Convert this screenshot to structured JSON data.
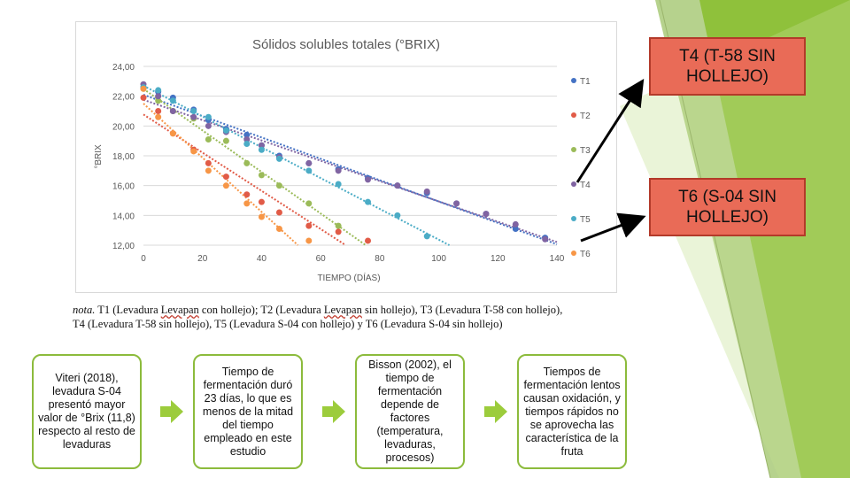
{
  "chart_data": {
    "type": "scatter",
    "title": "Sólidos solubles totales (°BRIX)",
    "xlabel": "TIEMPO (DÍAS)",
    "ylabel": "°BRIX",
    "xlim": [
      0,
      140
    ],
    "ylim": [
      12,
      24
    ],
    "x_ticks": [
      "0",
      "20",
      "40",
      "60",
      "80",
      "100",
      "120",
      "140"
    ],
    "y_ticks": [
      "12,00",
      "14,00",
      "16,00",
      "18,00",
      "20,00",
      "22,00",
      "24,00"
    ],
    "grid": "horizontal",
    "trendlines": "linear dotted",
    "legend_position": "right",
    "series": [
      {
        "name": "T1",
        "color": "#4472c4",
        "x": [
          0,
          5,
          10,
          17,
          22,
          28,
          35,
          40,
          46,
          56,
          66,
          76,
          86,
          96,
          106,
          116,
          126,
          136
        ],
        "y": [
          22.6,
          22.3,
          21.9,
          21.1,
          20.4,
          19.8,
          19.4,
          18.7,
          18.0,
          17.5,
          17.1,
          16.5,
          16.0,
          15.5,
          14.8,
          14.1,
          13.1,
          12.5
        ]
      },
      {
        "name": "T2",
        "color": "#e15b47",
        "x": [
          0,
          5,
          10,
          17,
          22,
          28,
          35,
          40,
          46,
          56,
          66,
          76
        ],
        "y": [
          21.9,
          21.0,
          19.5,
          18.4,
          17.5,
          16.6,
          15.4,
          14.9,
          14.2,
          13.3,
          12.9,
          12.3
        ]
      },
      {
        "name": "T3",
        "color": "#9bbb59",
        "x": [
          0,
          5,
          10,
          17,
          22,
          28,
          35,
          40,
          46,
          56,
          66
        ],
        "y": [
          22.5,
          21.7,
          21.0,
          20.5,
          19.1,
          19.0,
          17.5,
          16.7,
          16.0,
          14.8,
          13.3
        ]
      },
      {
        "name": "T4",
        "color": "#8064a2",
        "x": [
          0,
          5,
          10,
          17,
          22,
          28,
          35,
          40,
          46,
          56,
          66,
          76,
          86,
          96,
          106,
          116,
          126,
          136
        ],
        "y": [
          22.8,
          22.0,
          21.0,
          20.6,
          20.0,
          19.6,
          19.1,
          18.7,
          17.9,
          17.5,
          17.0,
          16.4,
          16.0,
          15.6,
          14.8,
          14.1,
          13.4,
          12.4
        ]
      },
      {
        "name": "T5",
        "color": "#4bacc6",
        "x": [
          0,
          5,
          10,
          17,
          22,
          28,
          35,
          40,
          46,
          56,
          66,
          76,
          86,
          96
        ],
        "y": [
          22.6,
          22.4,
          21.7,
          21.0,
          20.6,
          19.7,
          18.8,
          18.4,
          17.8,
          17.0,
          16.1,
          14.9,
          14.0,
          12.6
        ]
      },
      {
        "name": "T6",
        "color": "#f79646",
        "x": [
          0,
          5,
          10,
          17,
          22,
          28,
          35,
          40,
          46,
          56
        ],
        "y": [
          22.5,
          20.6,
          19.5,
          18.3,
          17.0,
          16.0,
          14.8,
          13.9,
          13.1,
          12.3
        ]
      }
    ]
  },
  "callouts": {
    "t4": "T4 (T-58 SIN HOLLEJO)",
    "t6": "T6 (S-04 SIN HOLLEJO)"
  },
  "note": {
    "label": "nota.",
    "t1a": " T1 (Levadura ",
    "levapan1": "Levapan",
    "t1b": " con hollejo); T2 (Levadura ",
    "levapan2": "Levapan",
    "line1_end": " sin hollejo), T3 (Levadura T-58 con hollejo),",
    "line2": "T4 (Levadura T-58 sin hollejo), T5 (Levadura S-04 con hollejo) y T6 (Levadura S-04 sin hollejo)"
  },
  "boxes": [
    "Viteri (2018), levadura S-04 presentó mayor valor de °Brix (11,8) respecto al resto de levaduras",
    "Tiempo de fermentación duró 23 días, lo que es menos de la mitad del tiempo empleado en este estudio",
    "Bisson (2002), el tiempo de fermentación depende de factores (temperatura, levaduras, procesos)",
    "Tiempos de fermentación lentos causan oxidación, y tiempos rápidos no se aprovecha las característica de la fruta"
  ],
  "colors": {
    "accent_green": "#8cbb3c",
    "callout_fill": "#e96b57",
    "arrow_green": "#9ccc3c"
  }
}
